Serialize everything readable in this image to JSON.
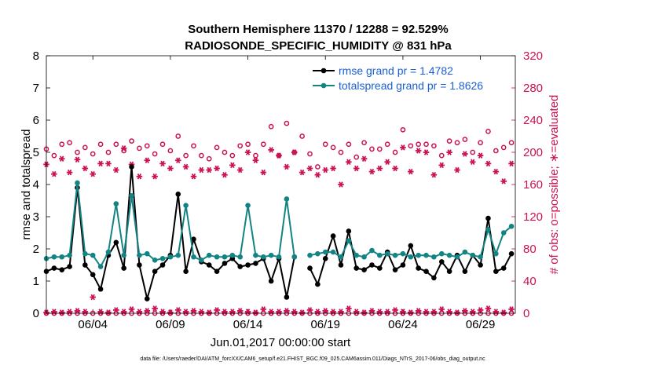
{
  "chart_data": {
    "type": "line",
    "title_line1": "Southern Hemisphere 11370 / 12288 = 92.529%",
    "title_line2": "RADIOSONDE_SPECIFIC_HUMIDITY @ 831 hPa",
    "ylabel_left": "rmse and totalspread",
    "ylabel_right": "# of obs: o=possible; ∗=evaluated",
    "xlabel": "Jun.01,2017 00:00:00 start",
    "footer": "data file: /Users/raeder/DAI/ATM_forcXX/CAM6_setup/f.e21.FHIST_BGC.f09_025.CAM6assim.011/Diags_NTrS_2017-06/obs_diag_output.nc",
    "x_tick_labels": [
      "06/04",
      "06/09",
      "06/14",
      "06/19",
      "06/24",
      "06/29"
    ],
    "x_tick_values": [
      4,
      9,
      14,
      19,
      24,
      29
    ],
    "xlim": [
      1,
      31.25
    ],
    "ylim_left": [
      0,
      8
    ],
    "ylim_right": [
      0,
      320
    ],
    "y_ticks_left": [
      "0",
      "1",
      "2",
      "3",
      "4",
      "5",
      "6",
      "7",
      "8"
    ],
    "y_ticks_right": [
      "0",
      "40",
      "80",
      "120",
      "160",
      "200",
      "240",
      "280",
      "320"
    ],
    "colors": {
      "rmse": "#000000",
      "spread": "#138484",
      "obs": "#cc1155"
    },
    "legend": [
      {
        "label": "rmse grand pr = 1.4782"
      },
      {
        "label": "totalspread grand pr = 1.8626"
      }
    ],
    "x": [
      1.0,
      1.5,
      2.0,
      2.5,
      3.0,
      3.5,
      4.0,
      4.5,
      5.0,
      5.5,
      6.0,
      6.5,
      7.0,
      7.5,
      8.0,
      8.5,
      9.0,
      9.5,
      10.0,
      10.5,
      11.0,
      11.5,
      12.0,
      12.5,
      13.0,
      13.5,
      14.0,
      14.5,
      15.0,
      15.5,
      16.0,
      16.5,
      17.0,
      17.5,
      18.0,
      18.5,
      19.0,
      19.5,
      20.0,
      20.5,
      21.0,
      21.5,
      22.0,
      22.5,
      23.0,
      23.5,
      24.0,
      24.5,
      25.0,
      25.5,
      26.0,
      26.5,
      27.0,
      27.5,
      28.0,
      28.5,
      29.0,
      29.5,
      30.0,
      30.5,
      31.0
    ],
    "series": [
      {
        "name": "rmse",
        "values": [
          1.3,
          1.4,
          1.35,
          1.45,
          3.9,
          1.5,
          1.2,
          0.75,
          1.8,
          2.2,
          1.4,
          4.55,
          1.5,
          0.45,
          1.3,
          1.5,
          1.8,
          3.7,
          1.3,
          2.3,
          1.6,
          1.5,
          1.3,
          1.55,
          1.7,
          1.45,
          1.5,
          1.55,
          1.7,
          1.0,
          1.7,
          0.5,
          1.75,
          null,
          1.4,
          0.9,
          1.7,
          2.4,
          1.5,
          2.55,
          1.4,
          1.35,
          1.5,
          1.4,
          1.9,
          1.35,
          1.5,
          2.1,
          1.4,
          1.3,
          1.1,
          1.6,
          1.3,
          1.8,
          1.3,
          1.8,
          1.5,
          2.95,
          1.3,
          1.4,
          1.85
        ]
      },
      {
        "name": "totalspread",
        "values": [
          1.7,
          1.75,
          1.75,
          1.8,
          4.05,
          1.85,
          1.8,
          1.45,
          1.9,
          3.4,
          1.8,
          3.65,
          1.8,
          1.85,
          1.65,
          1.7,
          1.75,
          1.8,
          3.35,
          1.75,
          1.65,
          1.8,
          1.75,
          1.75,
          1.8,
          1.75,
          3.35,
          1.8,
          1.75,
          1.8,
          1.75,
          3.55,
          1.75,
          null,
          1.8,
          1.85,
          1.9,
          1.9,
          1.75,
          2.25,
          1.8,
          1.75,
          1.95,
          1.8,
          1.85,
          1.8,
          1.85,
          1.75,
          1.8,
          1.8,
          1.75,
          1.85,
          1.8,
          1.75,
          1.9,
          1.8,
          1.75,
          2.6,
          1.85,
          2.5,
          2.7
        ]
      },
      {
        "name": "obs_possible",
        "values": [
          204,
          196,
          210,
          212,
          200,
          206,
          198,
          210,
          200,
          210,
          202,
          214,
          205,
          208,
          198,
          210,
          202,
          220,
          196,
          208,
          196,
          192,
          206,
          200,
          196,
          208,
          210,
          196,
          210,
          232,
          196,
          236,
          200,
          220,
          198,
          182,
          210,
          206,
          200,
          210,
          194,
          212,
          204,
          204,
          210,
          200,
          228,
          208,
          210,
          210,
          208,
          196,
          214,
          212,
          216,
          200,
          212,
          226,
          202,
          206,
          212
        ]
      },
      {
        "name": "obs_evaluated",
        "values": [
          185,
          173,
          192,
          175,
          191,
          180,
          173,
          186,
          186,
          178,
          205,
          185,
          170,
          190,
          170,
          186,
          180,
          190,
          182,
          170,
          178,
          178,
          180,
          172,
          184,
          178,
          200,
          190,
          175,
          203,
          196,
          182,
          200,
          175,
          180,
          172,
          178,
          180,
          160,
          188,
          180,
          192,
          176,
          180,
          188,
          180,
          206,
          176,
          202,
          200,
          172,
          184,
          200,
          178,
          198,
          188,
          196,
          186,
          176,
          164,
          186
        ]
      },
      {
        "name": "obs_possible_low",
        "values": [
          0,
          0,
          0,
          0,
          0,
          0,
          0,
          0,
          0,
          0,
          0,
          0,
          0,
          0,
          0,
          0,
          0,
          0,
          0,
          0,
          0,
          0,
          0,
          0,
          0,
          0,
          0,
          0,
          0,
          0,
          0,
          0,
          0,
          0,
          0,
          0,
          0,
          0,
          0,
          0,
          0,
          0,
          0,
          0,
          0,
          0,
          0,
          0,
          0,
          0,
          0,
          0,
          0,
          0,
          0,
          0,
          0,
          0,
          0,
          0,
          0
        ]
      },
      {
        "name": "obs_evaluated_low",
        "values": [
          1,
          2,
          1,
          2,
          3,
          2,
          20,
          2,
          1,
          4,
          2,
          5,
          2,
          3,
          6,
          2,
          1,
          4,
          2,
          3,
          2,
          1,
          4,
          2,
          2,
          3,
          2,
          1,
          5,
          2,
          2,
          3,
          2,
          1,
          4,
          2,
          3,
          2,
          2,
          6,
          2,
          1,
          3,
          2,
          2,
          4,
          2,
          1,
          3,
          2,
          2,
          5,
          2,
          1,
          3,
          2,
          4,
          6,
          2,
          1,
          5
        ]
      }
    ]
  }
}
